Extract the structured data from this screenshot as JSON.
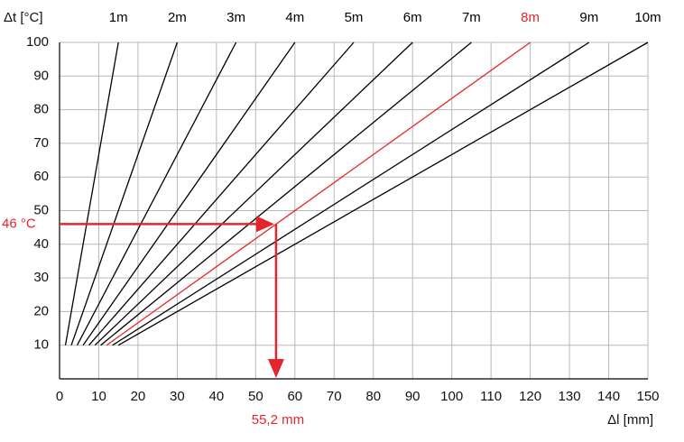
{
  "chart_data": {
    "type": "line",
    "y_label": "Δt [°C]",
    "x_label": "Δl [mm]",
    "xlim": [
      0,
      150
    ],
    "xticks": [
      0,
      10,
      20,
      30,
      40,
      50,
      60,
      70,
      80,
      90,
      100,
      110,
      120,
      130,
      140,
      150
    ],
    "ylim": [
      0,
      100
    ],
    "yticks": [
      10,
      20,
      30,
      40,
      50,
      60,
      70,
      80,
      90,
      100
    ],
    "grid": true,
    "series": [
      {
        "name": "1m",
        "color": "#000000",
        "x": [
          1.5,
          15
        ],
        "values": [
          10,
          100
        ]
      },
      {
        "name": "2m",
        "color": "#000000",
        "x": [
          3,
          30
        ],
        "values": [
          10,
          100
        ]
      },
      {
        "name": "3m",
        "color": "#000000",
        "x": [
          4.5,
          45
        ],
        "values": [
          10,
          100
        ]
      },
      {
        "name": "4m",
        "color": "#000000",
        "x": [
          6,
          60
        ],
        "values": [
          10,
          100
        ]
      },
      {
        "name": "5m",
        "color": "#000000",
        "x": [
          7.5,
          75
        ],
        "values": [
          10,
          100
        ]
      },
      {
        "name": "6m",
        "color": "#000000",
        "x": [
          9,
          90
        ],
        "values": [
          10,
          100
        ]
      },
      {
        "name": "7m",
        "color": "#000000",
        "x": [
          10.5,
          105
        ],
        "values": [
          10,
          100
        ]
      },
      {
        "name": "8m",
        "color": "#e3262b",
        "x": [
          12,
          120
        ],
        "values": [
          10,
          100
        ]
      },
      {
        "name": "9m",
        "color": "#000000",
        "x": [
          13.5,
          135
        ],
        "values": [
          10,
          100
        ]
      },
      {
        "name": "10m",
        "color": "#000000",
        "x": [
          15,
          150
        ],
        "values": [
          10,
          100
        ]
      }
    ],
    "annotation": {
      "x": 55.2,
      "y": 46,
      "x_text": "55,2 mm",
      "y_text": "46 °C",
      "color": "#e3262b"
    }
  }
}
